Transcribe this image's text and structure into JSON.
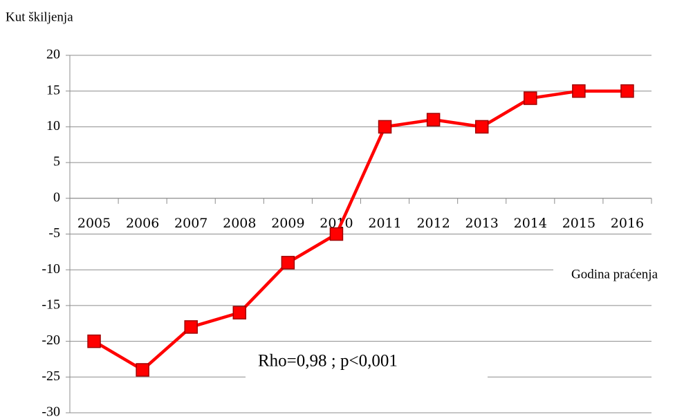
{
  "chart_data": {
    "type": "line",
    "y_label": "Kut škiljenja",
    "x_label": "Godina praćenja",
    "annotation": "Rho=0,98 ; p<0,001",
    "categories": [
      "2005",
      "2006",
      "2007",
      "2008",
      "2009",
      "2010",
      "2011",
      "2012",
      "2013",
      "2014",
      "2015",
      "2016"
    ],
    "values": [
      -20,
      -24,
      -18,
      -16,
      -9,
      -5,
      10,
      11,
      10,
      14,
      15,
      15
    ],
    "color": "#ff0000",
    "ylim": [
      -30,
      20
    ],
    "yticks": [
      -30,
      -25,
      -20,
      -15,
      -10,
      -5,
      0,
      5,
      10,
      15,
      20
    ],
    "grid": true
  }
}
